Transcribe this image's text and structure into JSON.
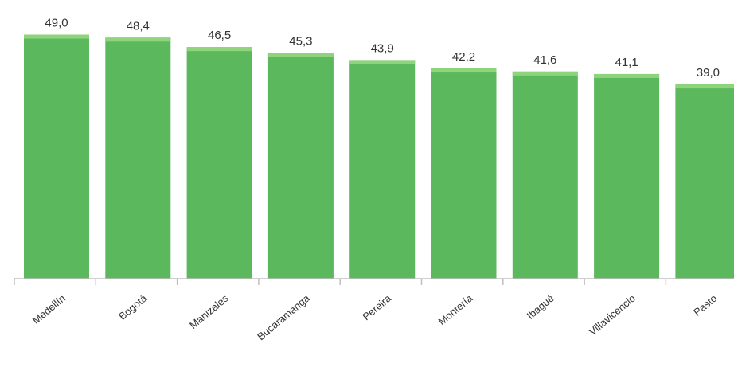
{
  "chart_data": {
    "type": "bar",
    "categories": [
      "Medellín",
      "Bogotá",
      "Manizales",
      "Bucaramanga",
      "Pereira",
      "Montería",
      "Ibagué",
      "Villavicencio",
      "Pasto"
    ],
    "values": [
      49.0,
      48.4,
      46.5,
      45.3,
      43.9,
      42.2,
      41.6,
      41.1,
      39.0
    ],
    "value_labels": [
      "49,0",
      "48,4",
      "46,5",
      "45,3",
      "43,9",
      "42,2",
      "41,6",
      "41,1",
      "39,0"
    ],
    "ylim": [
      0,
      52
    ],
    "bar_color": "#5cb85c",
    "grid": false,
    "legend": "none"
  }
}
